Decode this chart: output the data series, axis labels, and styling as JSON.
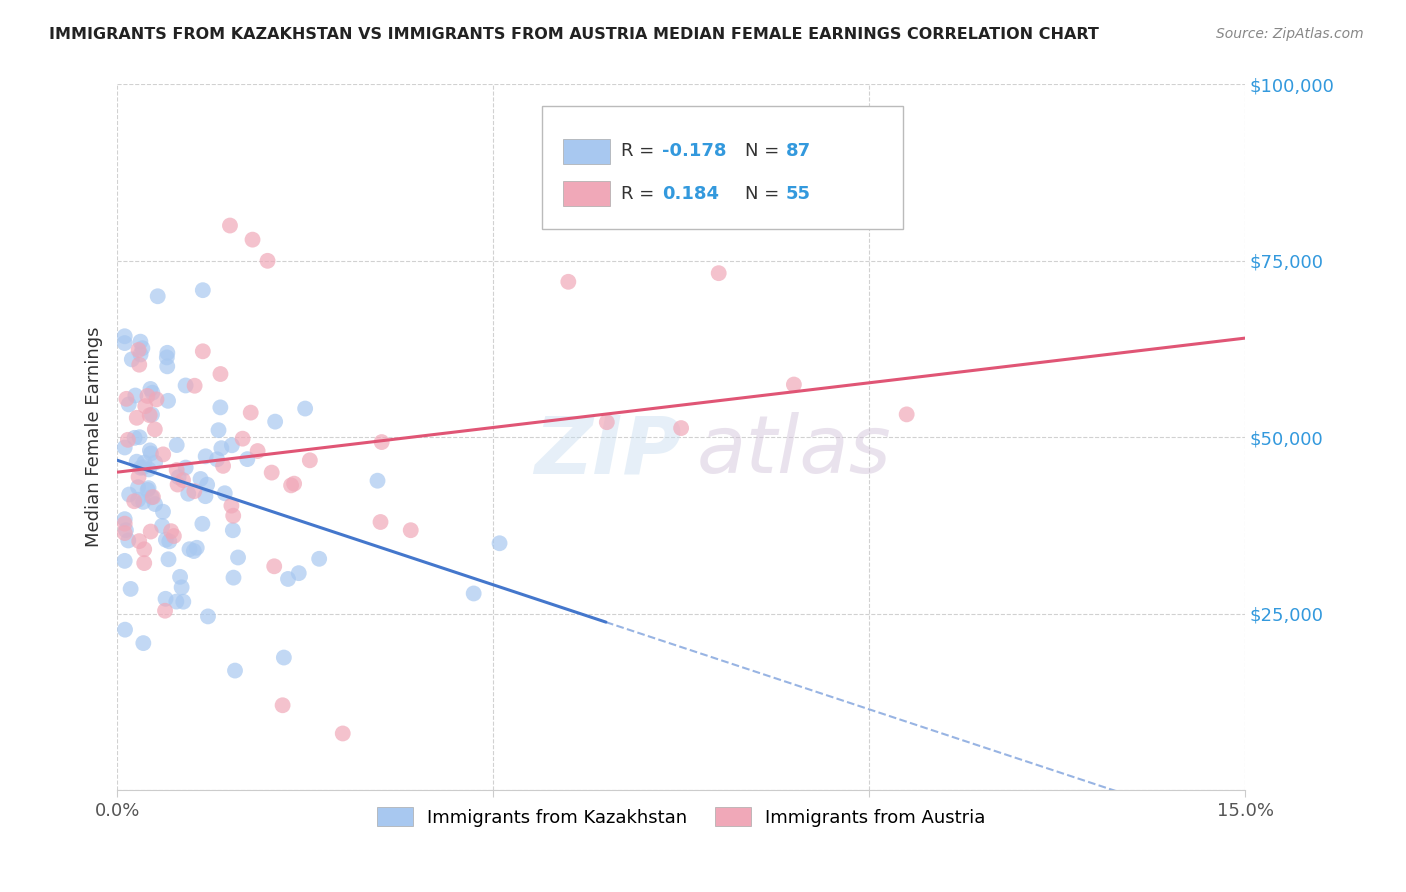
{
  "title": "IMMIGRANTS FROM KAZAKHSTAN VS IMMIGRANTS FROM AUSTRIA MEDIAN FEMALE EARNINGS CORRELATION CHART",
  "source": "Source: ZipAtlas.com",
  "ylabel_text": "Median Female Earnings",
  "x_min": 0.0,
  "x_max": 0.15,
  "y_min": 0,
  "y_max": 100000,
  "color_kazakhstan": "#a8c8f0",
  "color_austria": "#f0a8b8",
  "line_color_kazakhstan": "#4477cc",
  "line_color_austria": "#e05575",
  "R_kazakhstan": -0.178,
  "N_kazakhstan": 87,
  "R_austria": 0.184,
  "N_austria": 55
}
